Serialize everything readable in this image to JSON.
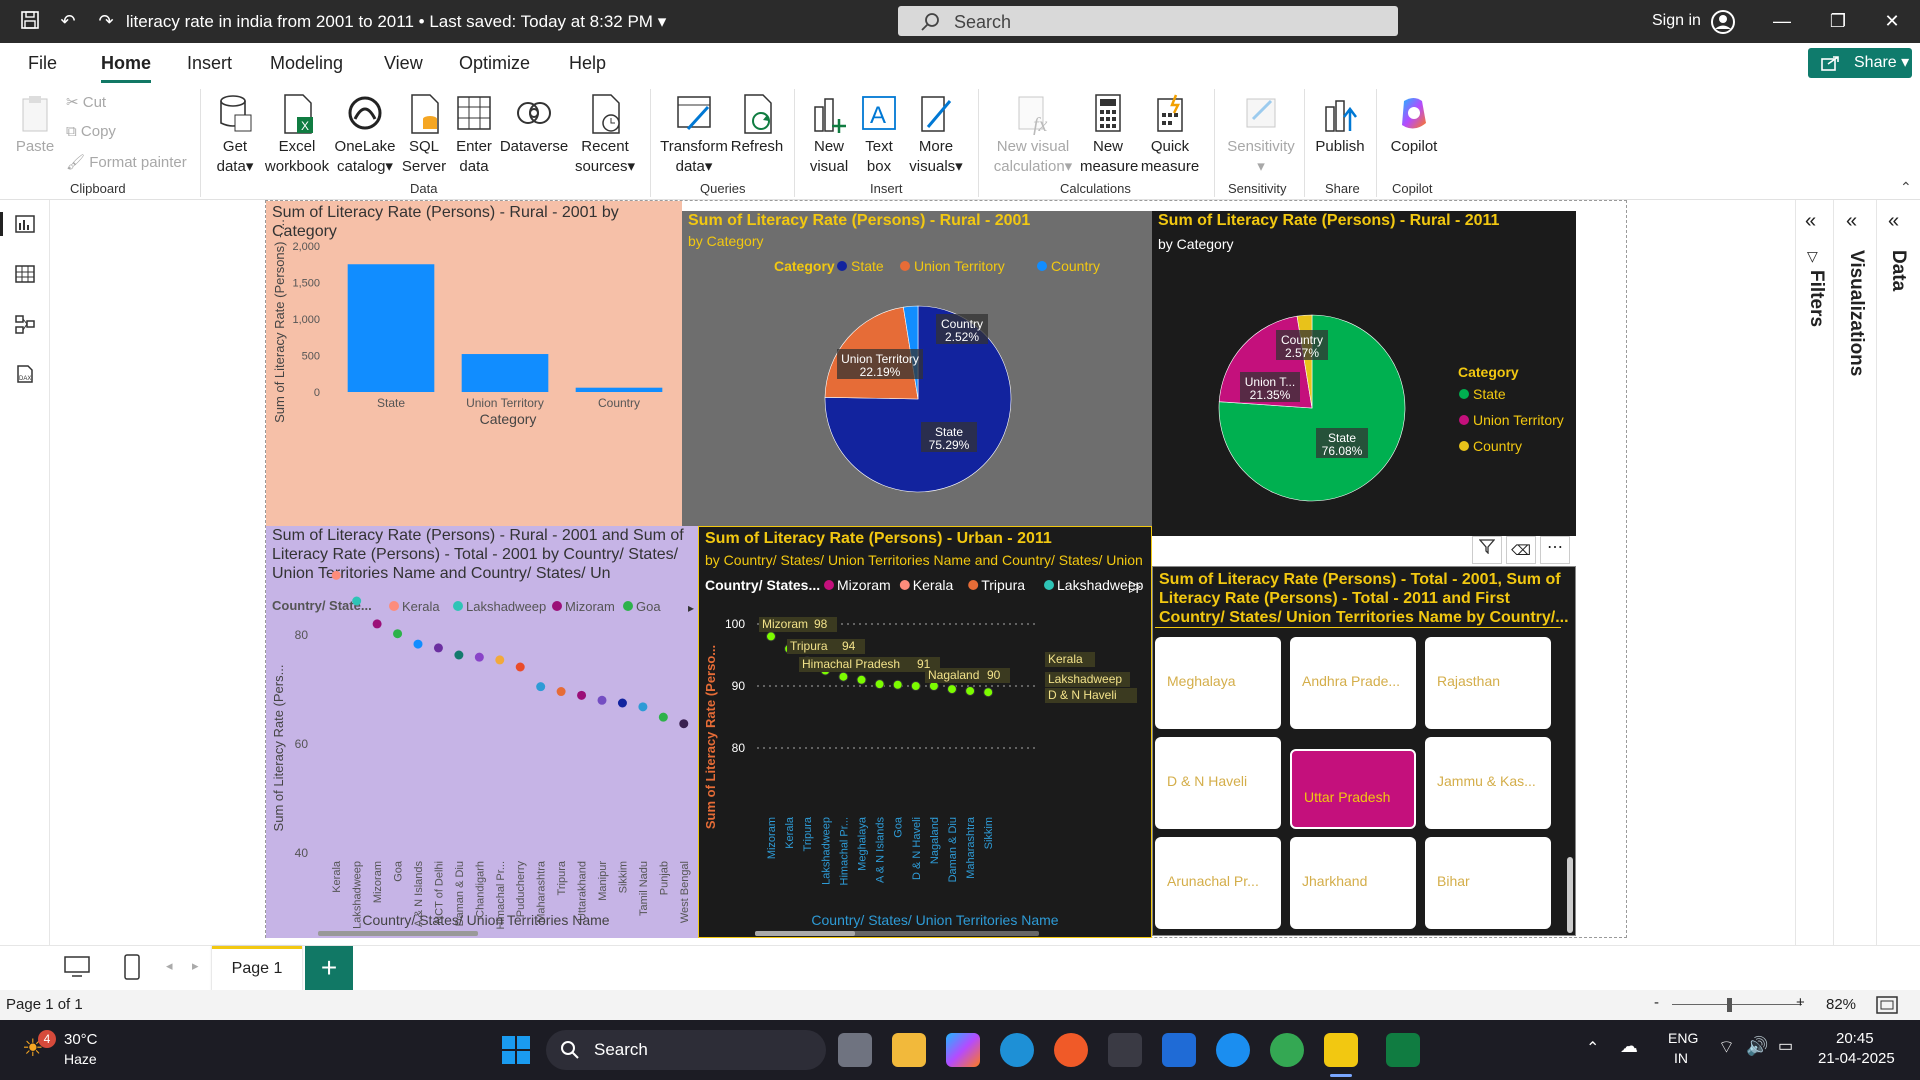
{
  "titlebar": {
    "doc_title": "literacy rate in india from 2001 to 2011",
    "saved": "• Last saved: Today at 8:32 PM",
    "search_placeholder": "Search",
    "sign_in": "Sign in"
  },
  "menu": {
    "items": [
      "File",
      "Home",
      "Insert",
      "Modeling",
      "View",
      "Optimize",
      "Help"
    ],
    "active": "Home",
    "share": "Share"
  },
  "ribbon": {
    "clipboard": {
      "paste": "Paste",
      "cut": "Cut",
      "copy": "Copy",
      "format_painter": "Format painter",
      "group": "Clipboard"
    },
    "data": {
      "get_data": [
        "Get",
        "data"
      ],
      "excel": [
        "Excel",
        "workbook"
      ],
      "onelake": [
        "OneLake",
        "catalog"
      ],
      "sql": [
        "SQL",
        "Server"
      ],
      "enter": [
        "Enter",
        "data"
      ],
      "dataverse": "Dataverse",
      "recent": [
        "Recent",
        "sources"
      ],
      "group": "Data"
    },
    "queries": {
      "transform": [
        "Transform",
        "data"
      ],
      "refresh": "Refresh",
      "group": "Queries"
    },
    "insert": {
      "new_visual": [
        "New",
        "visual"
      ],
      "text_box": [
        "Text",
        "box"
      ],
      "more_visuals": [
        "More",
        "visuals"
      ],
      "group": "Insert"
    },
    "calculations": {
      "new_visual_calc": [
        "New visual",
        "calculation"
      ],
      "new_measure": [
        "New",
        "measure"
      ],
      "quick_measure": [
        "Quick",
        "measure"
      ],
      "group": "Calculations"
    },
    "sensitivity": {
      "label": "Sensitivity",
      "group": "Sensitivity"
    },
    "share": {
      "publish": "Publish",
      "group": "Share"
    },
    "copilot": {
      "label": "Copilot",
      "group": "Copilot"
    }
  },
  "panels": {
    "bar": {
      "title": "Sum of Literacy Rate (Persons) - Rural - 2001 by Category",
      "ylabel": "Sum of Literacy Rate (Persons) - ...",
      "xlabel": "Category"
    },
    "pie2001": {
      "title": "Sum of Literacy Rate (Persons) - Rural - 2001",
      "subtitle": "by Category",
      "legend_title": "Category"
    },
    "pie2011": {
      "title": "Sum of Literacy Rate (Persons) - Rural - 2011",
      "subtitle": "by Category",
      "legend_title": "Category"
    },
    "scatter_total": {
      "title": "Sum of Literacy Rate (Persons) - Rural - 2001 and Sum of Literacy Rate (Persons) - Total - 2001 by Country/ States/ Union Territories Name and Country/ States/ Un",
      "legend_title": "Country/ State...",
      "ylabel": "Sum of Literacy Rate (Pers...",
      "xlabel": "Country/ States/ Union Territories Name"
    },
    "scatter_urban": {
      "title": "Sum of Literacy Rate (Persons) - Urban - 2011",
      "subtitle": "by Country/ States/ Union Territories Name and Country/ States/ Union T...",
      "legend_title": "Country/ States...",
      "ylabel": "Sum of Literacy Rate (Perso...",
      "xlabel": "Country/ States/ Union Territories Name"
    },
    "slicer": {
      "title": "Sum of Literacy Rate (Persons) - Total - 2001, Sum of Literacy Rate (Persons) - Total - 2011 and First Country/ States/ Union Territories Name by Country/...",
      "items": [
        "Meghalaya",
        "Andhra Prade...",
        "Rajasthan",
        "D & N Haveli",
        "Uttar Pradesh",
        "Jammu & Kas...",
        "Arunachal Pr...",
        "Jharkhand",
        "Bihar"
      ],
      "selected": "Uttar Pradesh"
    }
  },
  "chart_data": [
    {
      "type": "bar",
      "title": "Sum of Literacy Rate (Persons) - Rural - 2001 by Category",
      "categories": [
        "State",
        "Union Territory",
        "Country"
      ],
      "values": [
        1750,
        520,
        59
      ],
      "ylim": [
        0,
        2000
      ],
      "yticks": [
        "0",
        "500",
        "1,000",
        "1,500",
        "2,000"
      ],
      "xlabel": "Category",
      "ylabel": "Sum of Literacy Rate (Persons) - ...",
      "color": "#118dff"
    },
    {
      "type": "pie",
      "title": "Sum of Literacy Rate (Persons) - Rural - 2001",
      "slices": [
        {
          "name": "State",
          "value": 75.29,
          "label": "75.29%",
          "color": "#12239e"
        },
        {
          "name": "Union Territory",
          "value": 22.19,
          "label": "22.19%",
          "color": "#e66c37"
        },
        {
          "name": "Country",
          "value": 2.52,
          "label": "2.52%",
          "color": "#118dff"
        }
      ],
      "legend": "top"
    },
    {
      "type": "pie",
      "title": "Sum of Literacy Rate (Persons) - Rural - 2011",
      "slices": [
        {
          "name": "State",
          "value": 76.08,
          "label": "76.08%",
          "color": "#00b050"
        },
        {
          "name": "Union Territory",
          "value": 21.35,
          "label": "21.35%",
          "color": "#c4107c"
        },
        {
          "name": "Country",
          "value": 2.57,
          "label": "2.57%",
          "color": "#e8c21a"
        }
      ],
      "display_labels": [
        "State",
        "Union T...",
        "Country"
      ],
      "legend": "right"
    },
    {
      "type": "scatter",
      "legend": [
        "Kerala",
        "Lakshadweep",
        "Mizoram",
        "Goa"
      ],
      "legend_colors": [
        "#fd8c7b",
        "#2ec4b6",
        "#9b0f78",
        "#2db24a"
      ],
      "ylim": [
        40,
        95
      ],
      "yticks": [
        "40",
        "60",
        "80"
      ],
      "categories": [
        "Kerala",
        "Lakshadweep",
        "Mizoram",
        "Goa",
        "A & N Islands",
        "NCT of Delhi",
        "Daman & Diu",
        "Chandigarh",
        "Himachal Pr...",
        "Puducherry",
        "Maharashtra",
        "Tripura",
        "Uttarakhand",
        "Manipur",
        "Sikkim",
        "Tamil Nadu",
        "Punjab",
        "West Bengal"
      ],
      "values": [
        90.9,
        86.2,
        82,
        80.2,
        78.3,
        77.6,
        76.3,
        75.9,
        75.4,
        74.1,
        70.5,
        69.6,
        68.9,
        68,
        67.5,
        66.8,
        64.9,
        63.7
      ],
      "colors": [
        "#fd8c7b",
        "#2ec4b6",
        "#9b0f78",
        "#2db24a",
        "#118dff",
        "#6b2fa0",
        "#137a6d",
        "#8944c8",
        "#f2a93b",
        "#ea4c2a",
        "#2e9bd6",
        "#e66c37",
        "#9b0f78",
        "#744ec2",
        "#12239e",
        "#2e9bd6",
        "#2db24a",
        "#3a2050"
      ]
    },
    {
      "type": "scatter",
      "legend": [
        "Mizoram",
        "Kerala",
        "Tripura",
        "Lakshadweep"
      ],
      "legend_colors": [
        "#c4107c",
        "#fd8c7b",
        "#e66c37",
        "#2ec4b6"
      ],
      "ylim": [
        77,
        101
      ],
      "yticks": [
        "80",
        "90",
        "100"
      ],
      "categories": [
        "Mizoram",
        "Kerala",
        "Tripura",
        "Lakshadweep",
        "Himachal Pr...",
        "Meghalaya",
        "A & N Islands",
        "Goa",
        "D & N Haveli",
        "Nagaland",
        "Daman & Diu",
        "Maharashtra",
        "Sikkim"
      ],
      "values": [
        98,
        96,
        94,
        92.5,
        91.5,
        91,
        90.3,
        90.2,
        90,
        90,
        89.5,
        89.2,
        89
      ],
      "point_labels": [
        {
          "text": "Mizoram",
          "value": "98"
        },
        {
          "text": "Tripura",
          "value": "94"
        },
        {
          "text": "Himachal Pradesh",
          "value": "91"
        },
        {
          "text": "Nagaland",
          "value": "90"
        },
        {
          "text": "Kerala",
          "value": ""
        },
        {
          "text": "Lakshadweep",
          "value": ""
        },
        {
          "text": "D & N Haveli",
          "value": ""
        }
      ],
      "color": "#7cfc00"
    }
  ],
  "pagebar": {
    "page": "Page 1",
    "add": "+"
  },
  "status": {
    "page_of": "Page 1 of 1",
    "zoom": "82%",
    "zoom_minus": "-",
    "zoom_plus": "+"
  },
  "taskbar": {
    "temp": "30°C",
    "weather": "Haze",
    "badge": "4",
    "search": "Search",
    "lang1": "ENG",
    "lang2": "IN",
    "time": "20:45",
    "date": "21-04-2025"
  }
}
